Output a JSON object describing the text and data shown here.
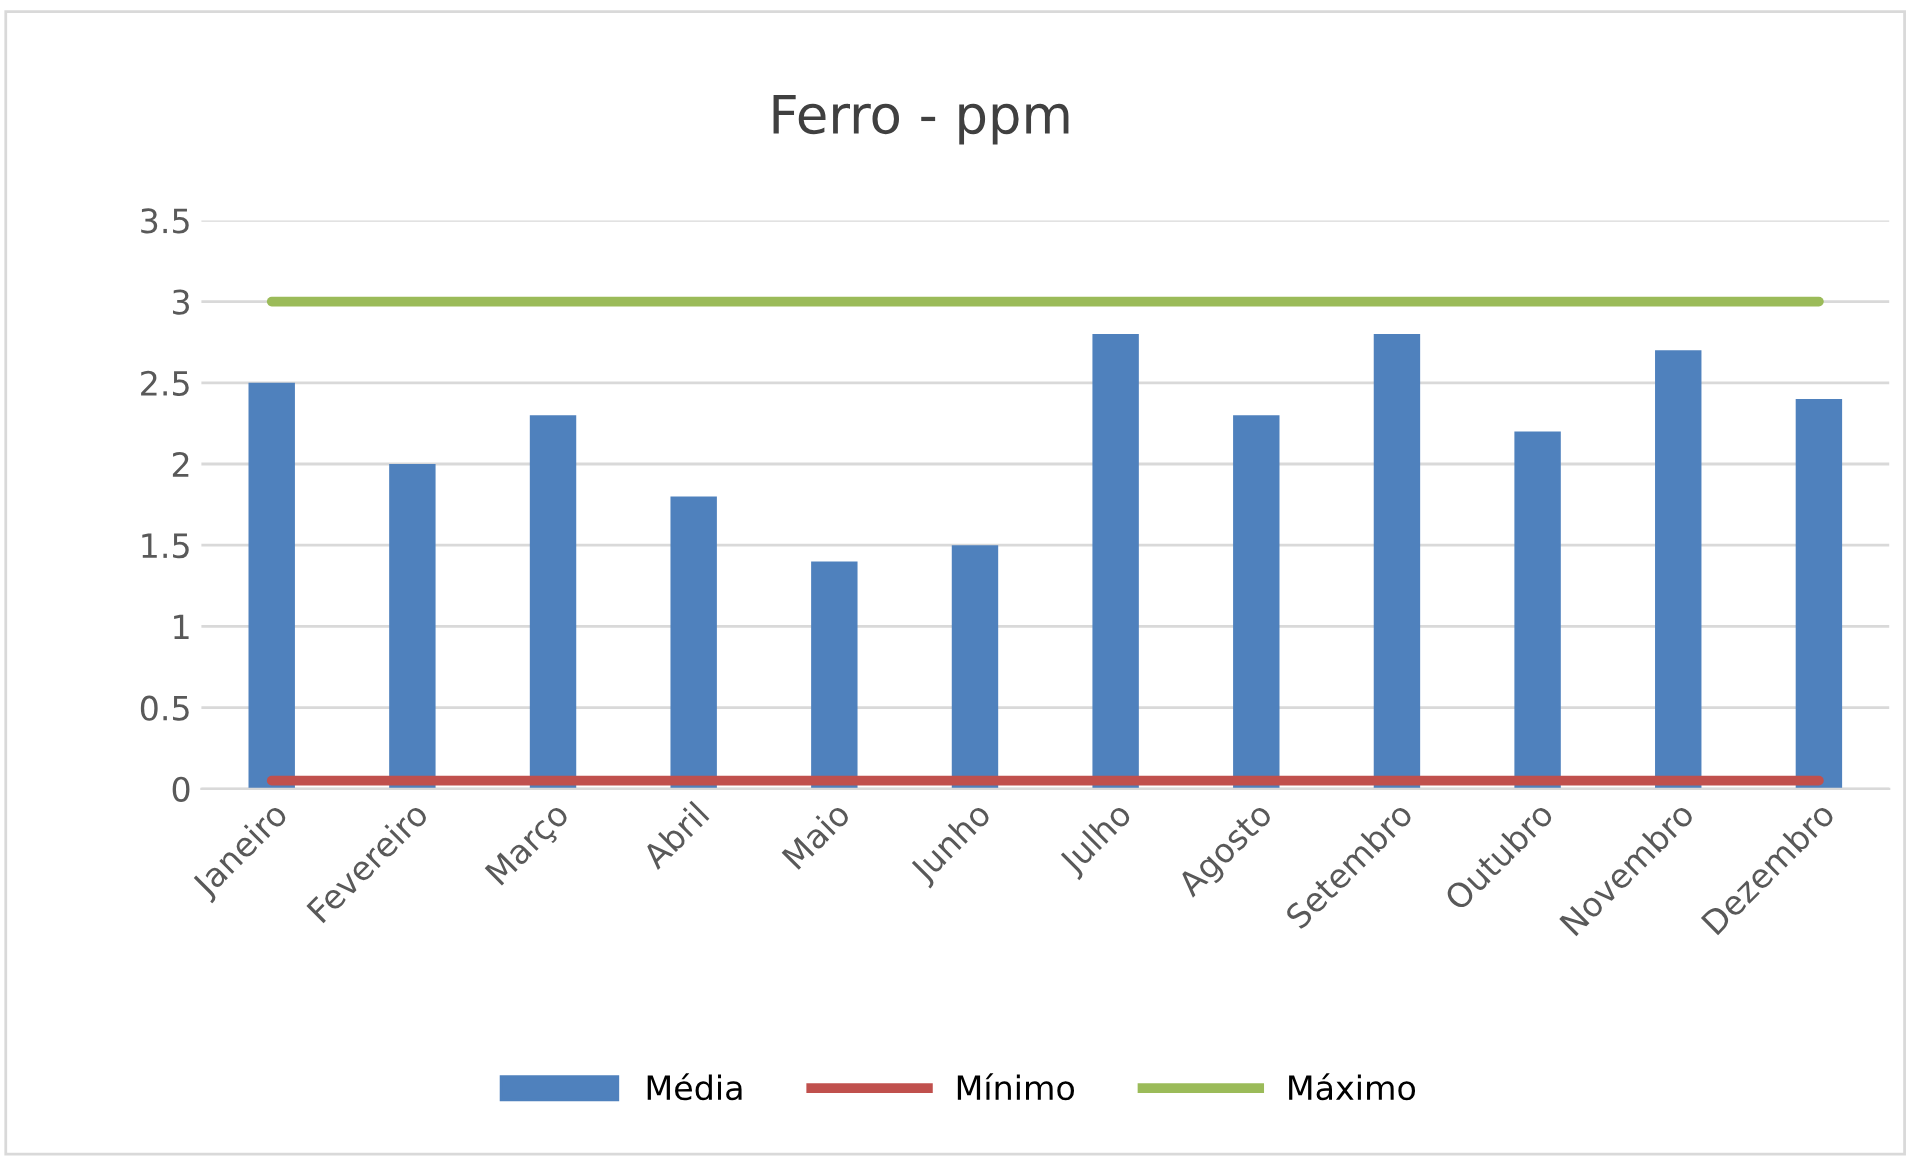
{
  "chart_data": {
    "type": "bar",
    "title": "Ferro - ppm",
    "categories": [
      "Janeiro",
      "Fevereiro",
      "Março",
      "Abril",
      "Maio",
      "Junho",
      "Julho",
      "Agosto",
      "Setembro",
      "Outubro",
      "Novembro",
      "Dezembro"
    ],
    "series": [
      {
        "name": "Média",
        "color": "#4f81bd",
        "values": [
          2.5,
          2.0,
          2.3,
          1.8,
          1.4,
          1.5,
          2.8,
          2.3,
          2.8,
          2.2,
          2.7,
          2.4
        ]
      },
      {
        "name": "Mínimo",
        "color": "#c0504d",
        "type": "line",
        "values": [
          0.05,
          0.05,
          0.05,
          0.05,
          0.05,
          0.05,
          0.05,
          0.05,
          0.05,
          0.05,
          0.05,
          0.05
        ]
      },
      {
        "name": "Máximo",
        "color": "#9bbb59",
        "type": "line",
        "values": [
          3,
          3,
          3,
          3,
          3,
          3,
          3,
          3,
          3,
          3,
          3,
          3
        ]
      }
    ],
    "ylim": [
      0,
      3.5
    ],
    "yticks": [
      0,
      0.5,
      1,
      1.5,
      2,
      2.5,
      3,
      3.5
    ],
    "grid": "y",
    "legend": "bottom"
  }
}
